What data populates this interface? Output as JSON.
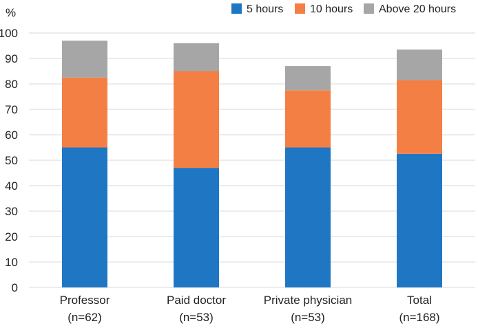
{
  "chart_data": {
    "type": "bar",
    "stacked": true,
    "title": "",
    "ylabel": "%",
    "xlabel": "",
    "ylim": [
      0,
      100
    ],
    "yticks": [
      0,
      10,
      20,
      30,
      40,
      50,
      60,
      70,
      80,
      90,
      100
    ],
    "grid": true,
    "legend_position": "top-right",
    "categories": [
      {
        "name": "Professor",
        "n": "(n=62)"
      },
      {
        "name": "Paid doctor",
        "n": "(n=53)"
      },
      {
        "name": "Private physician",
        "n": "(n=53)"
      },
      {
        "name": "Total",
        "n": "(n=168)"
      }
    ],
    "series": [
      {
        "name": "5 hours",
        "color": "#1f77c4",
        "values": [
          55,
          47,
          55,
          52.5
        ]
      },
      {
        "name": "10 hours",
        "color": "#f47f45",
        "values": [
          27.5,
          38,
          22.5,
          29
        ]
      },
      {
        "name": "Above 20 hours",
        "color": "#a6a6a6",
        "values": [
          14.5,
          11,
          9.5,
          12
        ]
      }
    ]
  }
}
